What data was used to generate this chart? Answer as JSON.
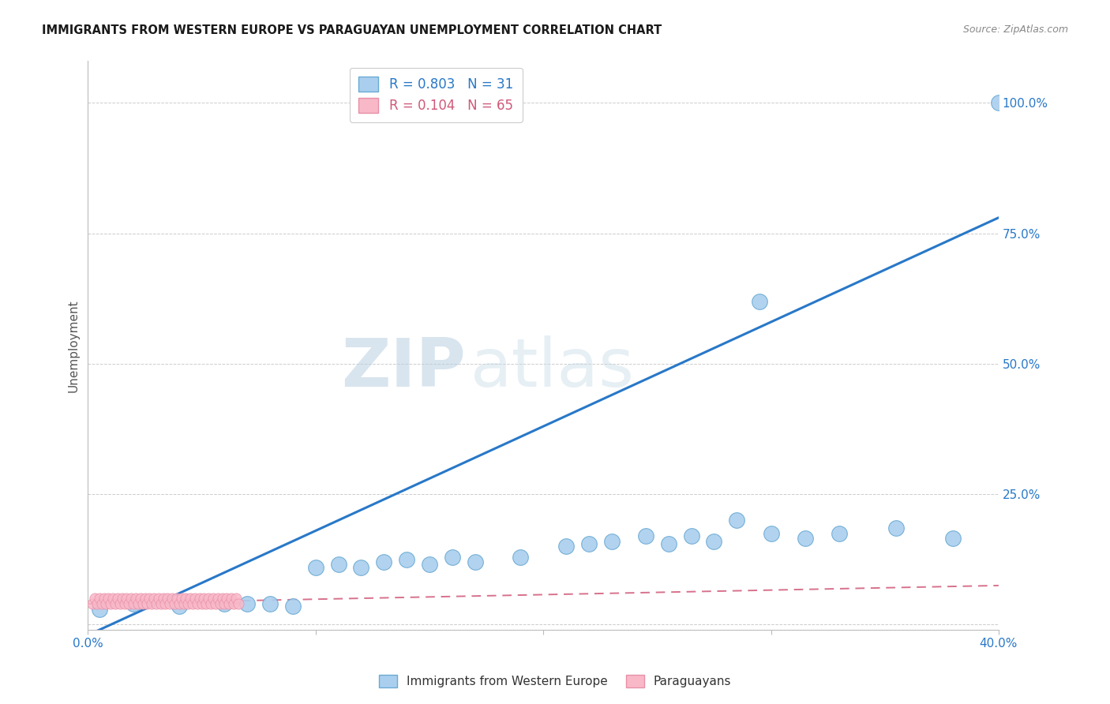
{
  "title": "IMMIGRANTS FROM WESTERN EUROPE VS PARAGUAYAN UNEMPLOYMENT CORRELATION CHART",
  "source": "Source: ZipAtlas.com",
  "ylabel": "Unemployment",
  "yticks": [
    0.0,
    0.25,
    0.5,
    0.75,
    1.0
  ],
  "ytick_labels": [
    "",
    "25.0%",
    "50.0%",
    "75.0%",
    "100.0%"
  ],
  "xlim": [
    0.0,
    0.4
  ],
  "ylim": [
    -0.01,
    1.08
  ],
  "blue_R": 0.803,
  "blue_N": 31,
  "pink_R": 0.104,
  "pink_N": 65,
  "blue_color": "#aacfee",
  "blue_edge_color": "#6aaad4",
  "blue_line_color": "#2878c8",
  "pink_color": "#f8b8c8",
  "pink_edge_color": "#e890a8",
  "pink_line_color": "#d05878",
  "watermark_zip": "ZIP",
  "watermark_atlas": "atlas",
  "blue_scatter_x": [
    0.005,
    0.02,
    0.04,
    0.06,
    0.07,
    0.08,
    0.09,
    0.1,
    0.11,
    0.12,
    0.13,
    0.14,
    0.15,
    0.16,
    0.17,
    0.19,
    0.21,
    0.22,
    0.23,
    0.245,
    0.255,
    0.265,
    0.275,
    0.285,
    0.3,
    0.315,
    0.33,
    0.355,
    0.38,
    0.295,
    0.4
  ],
  "blue_scatter_y": [
    0.03,
    0.04,
    0.035,
    0.04,
    0.04,
    0.04,
    0.035,
    0.11,
    0.115,
    0.11,
    0.12,
    0.125,
    0.115,
    0.13,
    0.12,
    0.13,
    0.15,
    0.155,
    0.16,
    0.17,
    0.155,
    0.17,
    0.16,
    0.2,
    0.175,
    0.165,
    0.175,
    0.185,
    0.165,
    0.62,
    1.0
  ],
  "pink_scatter_x": [
    0.002,
    0.003,
    0.004,
    0.005,
    0.006,
    0.007,
    0.008,
    0.009,
    0.01,
    0.011,
    0.012,
    0.013,
    0.014,
    0.015,
    0.016,
    0.017,
    0.018,
    0.019,
    0.02,
    0.021,
    0.022,
    0.023,
    0.024,
    0.025,
    0.026,
    0.027,
    0.028,
    0.029,
    0.03,
    0.031,
    0.032,
    0.033,
    0.034,
    0.035,
    0.036,
    0.037,
    0.038,
    0.039,
    0.04,
    0.041,
    0.042,
    0.043,
    0.044,
    0.045,
    0.046,
    0.047,
    0.048,
    0.049,
    0.05,
    0.051,
    0.052,
    0.053,
    0.054,
    0.055,
    0.056,
    0.057,
    0.058,
    0.059,
    0.06,
    0.061,
    0.062,
    0.063,
    0.064,
    0.065,
    0.066
  ],
  "pink_scatter_y": [
    0.04,
    0.05,
    0.04,
    0.05,
    0.04,
    0.05,
    0.04,
    0.05,
    0.04,
    0.05,
    0.04,
    0.05,
    0.04,
    0.05,
    0.04,
    0.05,
    0.04,
    0.05,
    0.04,
    0.05,
    0.04,
    0.05,
    0.04,
    0.05,
    0.04,
    0.05,
    0.04,
    0.05,
    0.04,
    0.05,
    0.04,
    0.05,
    0.04,
    0.05,
    0.04,
    0.05,
    0.04,
    0.05,
    0.04,
    0.05,
    0.04,
    0.05,
    0.04,
    0.05,
    0.04,
    0.05,
    0.04,
    0.05,
    0.04,
    0.05,
    0.04,
    0.05,
    0.04,
    0.05,
    0.04,
    0.05,
    0.04,
    0.05,
    0.04,
    0.05,
    0.04,
    0.05,
    0.04,
    0.05,
    0.04
  ],
  "blue_line_x": [
    0.0,
    0.4
  ],
  "blue_line_y": [
    -0.02,
    0.78
  ],
  "pink_line_x": [
    0.0,
    0.4
  ],
  "pink_line_y": [
    0.04,
    0.075
  ]
}
